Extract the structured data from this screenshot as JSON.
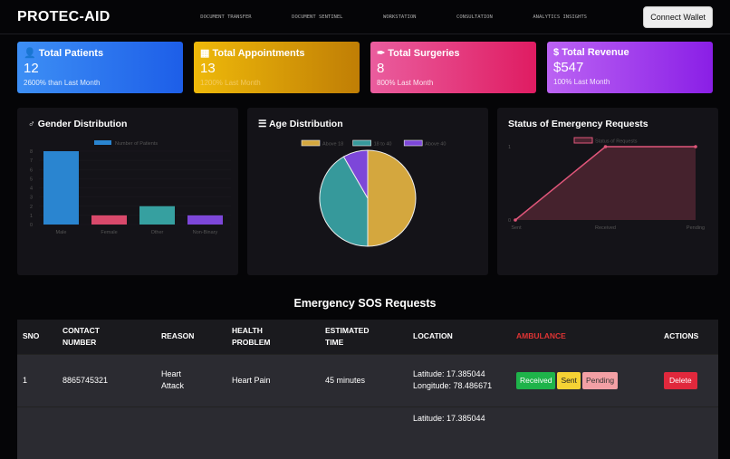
{
  "nav": {
    "logo": "PROTEC-AID",
    "links": [
      "Document Transfer",
      "Document Sentinel",
      "Workstation",
      "Consultation",
      "Analytics Insights"
    ],
    "wallet": "Connect Wallet"
  },
  "cards": [
    {
      "icon": "user-doctor-icon",
      "title": "Total Patients",
      "value": "12",
      "sub": "2600% than Last Month"
    },
    {
      "icon": "calendar-icon",
      "title": "Total Appointments",
      "value": "13",
      "sub": "1200% Last Month"
    },
    {
      "icon": "syringe-icon",
      "title": "Total Surgeries",
      "value": "8",
      "sub": "800% Last Month"
    },
    {
      "icon": "dollar-icon",
      "title": "Total Revenue",
      "value": "$547",
      "sub": "100% Last Month"
    }
  ],
  "panels": {
    "gender": "Gender Distribution",
    "age": "Age Distribution",
    "status": "Status of Emergency Requests"
  },
  "chart_data": [
    {
      "type": "bar",
      "title": "Gender Distribution",
      "categories": [
        "Male",
        "Female",
        "Other",
        "Non-Binary"
      ],
      "series": [
        {
          "name": "Number of Patients",
          "values": [
            8,
            1,
            2,
            1
          ]
        }
      ],
      "colors": [
        "#2a85d0",
        "#d9496b",
        "#36a0a0",
        "#7d47d9"
      ],
      "ylim": [
        0,
        8
      ],
      "yticks": [
        0,
        1,
        2,
        3,
        4,
        5,
        6,
        7,
        8
      ],
      "legend": "top"
    },
    {
      "type": "pie",
      "title": "Age Distribution",
      "categories": [
        "Above 18",
        "18 to 40",
        "Above 40"
      ],
      "values": [
        6,
        5,
        1
      ],
      "colors": [
        "#d4a73e",
        "#36999b",
        "#7d47d9"
      ],
      "legend": "top"
    },
    {
      "type": "area",
      "title": "Status of Emergency Requests",
      "categories": [
        "Sent",
        "Received",
        "Pending"
      ],
      "series": [
        {
          "name": "Status of Requests",
          "values": [
            0,
            1,
            1
          ]
        }
      ],
      "ylim": [
        0,
        1
      ],
      "yticks": [
        0,
        1
      ],
      "color": "#e0567a",
      "legend": "top"
    }
  ],
  "sos": {
    "title": "Emergency SOS Requests",
    "headers": [
      "SNO",
      "CONTACT NUMBER",
      "REASON",
      "HEALTH PROBLEM",
      "ESTIMATED TIME",
      "LOCATION",
      "AMBULANCE",
      "ACTIONS"
    ],
    "rows": [
      {
        "sno": "1",
        "contact": "8865745321",
        "reason": "Heart Attack",
        "problem": "Heart Pain",
        "time": "45 minutes",
        "lat": "Latitude: 17.385044",
        "lng": "Longitude: 78.486671",
        "received": "Received",
        "sent": "Sent",
        "pending": "Pending",
        "delete": "Delete"
      },
      {
        "lat": "Latitude: 17.385044"
      }
    ]
  }
}
